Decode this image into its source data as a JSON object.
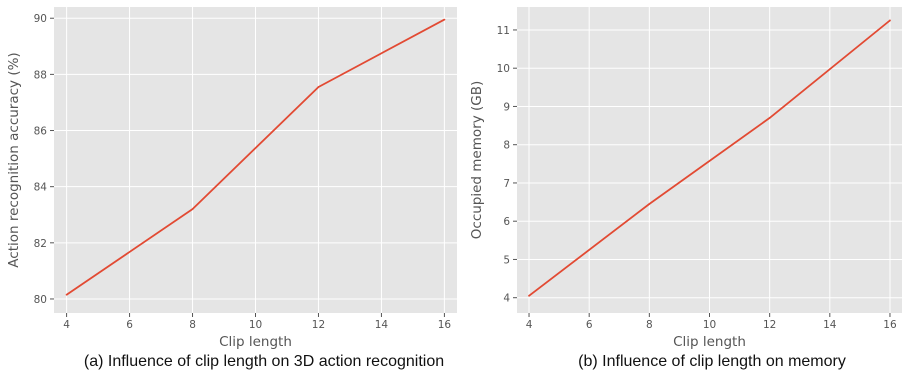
{
  "chart_data": [
    {
      "type": "line",
      "caption": "(a) Influence of clip length on 3D action recognition",
      "xlabel": "Clip length",
      "ylabel": "Action recognition accuracy (%)",
      "xlim": [
        3.6,
        16.4
      ],
      "ylim": [
        79.5,
        90.4
      ],
      "xticks": [
        4,
        6,
        8,
        10,
        12,
        14,
        16
      ],
      "yticks": [
        80,
        82,
        84,
        86,
        88,
        90
      ],
      "grid": true,
      "series": [
        {
          "x": [
            4,
            8,
            12,
            16
          ],
          "values": [
            80.15,
            83.2,
            87.55,
            89.95
          ],
          "color": "#e24a33"
        }
      ]
    },
    {
      "type": "line",
      "caption": "(b) Influence of clip length on memory",
      "xlabel": "Clip length",
      "ylabel": "Occupied memory (GB)",
      "xlim": [
        3.6,
        16.4
      ],
      "ylim": [
        3.6,
        11.6
      ],
      "xticks": [
        4,
        6,
        8,
        10,
        12,
        14,
        16
      ],
      "yticks": [
        4,
        5,
        6,
        7,
        8,
        9,
        10,
        11
      ],
      "grid": true,
      "series": [
        {
          "x": [
            4,
            8,
            12,
            16
          ],
          "values": [
            4.05,
            6.45,
            8.7,
            11.25
          ],
          "color": "#e24a33"
        }
      ]
    }
  ],
  "style": {
    "panel_bg": "#e5e5e5",
    "grid_color": "#ffffff",
    "text_color": "#555555"
  }
}
